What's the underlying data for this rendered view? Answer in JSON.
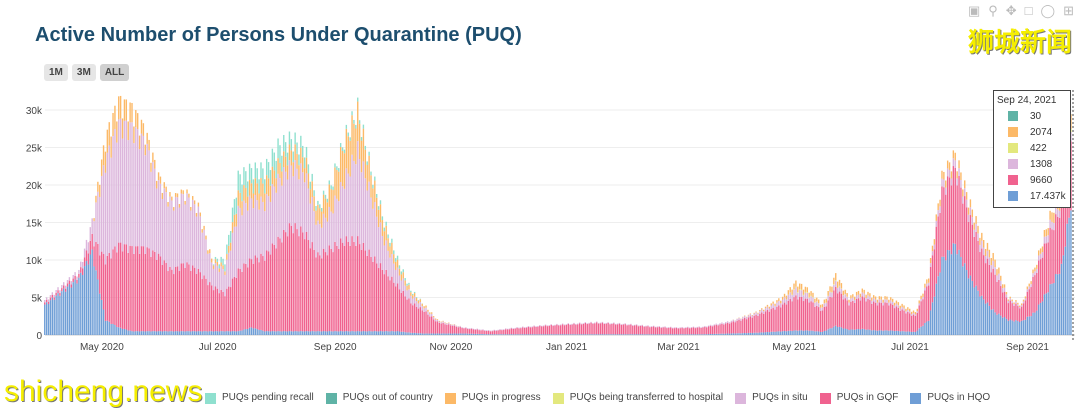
{
  "title": "Active Number of Persons Under Quarantine (PUQ)",
  "range_buttons": [
    "1M",
    "3M",
    "ALL"
  ],
  "watermark_top": "狮城新闻",
  "watermark_bottom": "shicheng.news",
  "toolbar_icons": [
    "camera-icon",
    "zoom-icon",
    "pan-icon",
    "box-select-icon",
    "lasso-icon",
    "plus-icon"
  ],
  "chart_data": {
    "type": "bar",
    "stacked": true,
    "title": "Active Number of Persons Under Quarantine (PUQ)",
    "xlabel": "",
    "ylabel": "",
    "ylim": [
      0,
      32000
    ],
    "yticks": [
      0,
      5000,
      10000,
      15000,
      20000,
      25000,
      30000
    ],
    "ytick_labels": [
      "0",
      "5k",
      "10k",
      "15k",
      "20k",
      "25k",
      "30k"
    ],
    "xtick_labels": [
      [
        "2020-05-01",
        "May 2020"
      ],
      [
        "2020-07-01",
        "Jul 2020"
      ],
      [
        "2020-09-01",
        "Sep 2020"
      ],
      [
        "2020-11-01",
        "Nov 2020"
      ],
      [
        "2021-01-01",
        "Jan 2021"
      ],
      [
        "2021-03-01",
        "Mar 2021"
      ],
      [
        "2021-05-01",
        "May 2021"
      ],
      [
        "2021-07-01",
        "Jul 2021"
      ],
      [
        "2021-09-01",
        "Sep 2021"
      ]
    ],
    "xrange": [
      "2020-04-01",
      "2021-09-26"
    ],
    "grid": true,
    "legend_position": "bottom",
    "series": [
      {
        "name": "PUQs in HQO",
        "color": "#6f9ed6"
      },
      {
        "name": "PUQs in GQF",
        "color": "#f0628f"
      },
      {
        "name": "PUQs in situ",
        "color": "#dcb6dc"
      },
      {
        "name": "PUQs being transferred to hospital",
        "color": "#e3e87e"
      },
      {
        "name": "PUQs in progress",
        "color": "#fcb967"
      },
      {
        "name": "PUQs out of country",
        "color": "#5fb3a6"
      },
      {
        "name": "PUQs pending recall",
        "color": "#8fe0cf"
      }
    ],
    "legend_order": [
      "PUQs pending recall",
      "PUQs out of country",
      "PUQs in progress",
      "PUQs being transferred to hospital",
      "PUQs in situ",
      "PUQs in GQF",
      "PUQs in HQO"
    ],
    "records_columns": [
      "date",
      "HQO",
      "GQF",
      "situ",
      "transfer",
      "progress",
      "out_of_country",
      "pending_recall"
    ],
    "records_unit": "thousands",
    "records": [
      [
        "2020-04-01",
        4,
        0.3,
        0.3,
        0,
        0,
        0,
        0
      ],
      [
        "2020-04-19",
        7.5,
        0.5,
        0.5,
        0,
        0,
        0,
        0
      ],
      [
        "2020-04-26",
        11,
        2,
        2,
        0,
        0,
        0,
        0
      ],
      [
        "2020-05-03",
        2,
        8,
        13,
        0,
        3,
        0,
        0
      ],
      [
        "2020-05-10",
        1,
        11,
        16,
        0,
        3,
        0,
        0
      ],
      [
        "2020-05-17",
        0.5,
        11,
        16,
        0,
        2.5,
        0,
        0
      ],
      [
        "2020-05-24",
        0.5,
        11,
        14,
        0,
        1.5,
        0,
        0
      ],
      [
        "2020-05-31",
        0.5,
        10,
        9.5,
        0,
        1,
        0,
        0
      ],
      [
        "2020-06-07",
        0.5,
        8,
        9,
        0,
        0.5,
        0,
        0
      ],
      [
        "2020-06-14",
        0.5,
        9,
        9,
        0,
        0.5,
        0,
        0
      ],
      [
        "2020-06-21",
        0.5,
        8,
        8,
        0,
        0.5,
        0,
        0
      ],
      [
        "2020-06-28",
        0.5,
        6,
        3,
        0,
        0.5,
        0,
        0
      ],
      [
        "2020-07-05",
        0.5,
        5,
        3,
        0,
        0.5,
        0,
        1
      ],
      [
        "2020-07-12",
        0.5,
        8,
        8,
        0,
        2,
        0,
        2.5
      ],
      [
        "2020-07-19",
        1,
        9,
        8,
        0,
        2,
        0,
        2
      ],
      [
        "2020-07-26",
        0.5,
        10,
        7,
        0,
        2.5,
        0,
        2
      ],
      [
        "2020-08-02",
        0.5,
        12,
        8,
        0,
        2,
        0,
        2.5
      ],
      [
        "2020-08-09",
        0.5,
        14,
        8,
        0,
        2,
        0,
        1.5
      ],
      [
        "2020-08-16",
        0.5,
        13,
        8,
        0,
        2,
        0,
        1.5
      ],
      [
        "2020-08-23",
        0.5,
        10,
        4,
        0,
        2,
        0,
        0.5
      ],
      [
        "2020-08-30",
        0.5,
        11,
        5,
        0,
        3,
        0,
        0.5
      ],
      [
        "2020-09-06",
        0.5,
        12,
        8,
        0,
        5,
        0,
        0.5
      ],
      [
        "2020-09-13",
        0.5,
        12,
        12,
        0,
        5,
        0,
        0.5
      ],
      [
        "2020-09-20",
        0.5,
        10,
        8,
        0,
        3,
        0,
        0.5
      ],
      [
        "2020-09-27",
        0.5,
        8,
        4,
        0,
        2,
        0,
        0.5
      ],
      [
        "2020-10-04",
        0.5,
        6,
        2,
        0,
        1,
        0,
        0.5
      ],
      [
        "2020-10-11",
        0.3,
        4,
        1,
        0,
        0.5,
        0,
        0.2
      ],
      [
        "2020-10-18",
        0.2,
        3,
        0.5,
        0,
        0.3,
        0,
        0
      ],
      [
        "2020-10-25",
        0.2,
        1.5,
        0.2,
        0,
        0.1,
        0,
        0
      ],
      [
        "2020-11-08",
        0.2,
        0.7,
        0.1,
        0,
        0,
        0,
        0
      ],
      [
        "2020-11-22",
        0.1,
        0.4,
        0.1,
        0,
        0,
        0,
        0
      ],
      [
        "2020-12-06",
        0.1,
        0.8,
        0.1,
        0,
        0,
        0,
        0
      ],
      [
        "2020-12-20",
        0.1,
        1.1,
        0.1,
        0,
        0,
        0,
        0
      ],
      [
        "2021-01-03",
        0.1,
        1.3,
        0.1,
        0,
        0,
        0,
        0
      ],
      [
        "2021-01-17",
        0.1,
        1.5,
        0.1,
        0,
        0,
        0,
        0
      ],
      [
        "2021-01-31",
        0.1,
        1.3,
        0.1,
        0,
        0,
        0,
        0
      ],
      [
        "2021-02-14",
        0.1,
        1,
        0.1,
        0,
        0,
        0,
        0
      ],
      [
        "2021-02-28",
        0.1,
        0.8,
        0.1,
        0,
        0,
        0,
        0
      ],
      [
        "2021-03-14",
        0.1,
        0.9,
        0.1,
        0,
        0,
        0,
        0
      ],
      [
        "2021-03-28",
        0.2,
        1.4,
        0.2,
        0,
        0,
        0,
        0
      ],
      [
        "2021-04-11",
        0.3,
        2.3,
        0.3,
        0,
        0.1,
        0,
        0
      ],
      [
        "2021-04-25",
        0.5,
        3.5,
        0.6,
        0,
        0.4,
        0,
        0
      ],
      [
        "2021-05-02",
        0.6,
        4.5,
        1,
        0.1,
        0.8,
        0,
        0
      ],
      [
        "2021-05-09",
        0.6,
        4,
        0.7,
        0.1,
        0.6,
        0,
        0
      ],
      [
        "2021-05-16",
        0.4,
        2.8,
        0.4,
        0,
        0.4,
        0,
        0
      ],
      [
        "2021-05-23",
        1.2,
        5,
        0.8,
        0.1,
        0.9,
        0,
        0
      ],
      [
        "2021-05-30",
        0.7,
        3.5,
        0.4,
        0,
        0.4,
        0,
        0
      ],
      [
        "2021-06-06",
        0.8,
        4.2,
        0.5,
        0,
        0.5,
        0,
        0
      ],
      [
        "2021-06-13",
        0.6,
        3.6,
        0.4,
        0,
        0.4,
        0,
        0
      ],
      [
        "2021-06-20",
        0.6,
        3.6,
        0.4,
        0,
        0.4,
        0,
        0
      ],
      [
        "2021-06-27",
        0.5,
        2.8,
        0.3,
        0,
        0.4,
        0,
        0
      ],
      [
        "2021-07-04",
        0.4,
        2.1,
        0.2,
        0,
        0.3,
        0,
        0
      ],
      [
        "2021-07-11",
        2,
        5,
        0.4,
        0,
        0.6,
        0,
        0
      ],
      [
        "2021-07-18",
        10,
        9,
        1,
        0,
        1,
        0,
        0
      ],
      [
        "2021-07-25",
        12,
        10,
        1,
        0,
        1,
        0,
        0
      ],
      [
        "2021-08-01",
        8,
        8,
        1,
        0,
        1,
        0,
        0
      ],
      [
        "2021-08-08",
        5,
        6,
        1,
        0,
        1,
        0,
        0
      ],
      [
        "2021-08-15",
        3,
        5,
        1,
        0,
        1,
        0,
        0
      ],
      [
        "2021-08-22",
        2,
        2.5,
        0.3,
        0,
        0.2,
        0,
        0
      ],
      [
        "2021-08-29",
        1.8,
        1.8,
        0.2,
        0,
        0.2,
        0,
        0
      ],
      [
        "2021-09-05",
        3,
        5,
        0.5,
        0,
        0.5,
        0,
        0
      ],
      [
        "2021-09-12",
        6,
        7,
        1,
        0,
        1,
        0,
        0
      ],
      [
        "2021-09-19",
        9,
        8,
        1,
        0,
        2,
        0,
        0
      ],
      [
        "2021-09-24",
        17.437,
        9.66,
        1.308,
        0.422,
        2.074,
        0.03,
        0
      ]
    ],
    "hover": {
      "date": "Sep 24, 2021",
      "rows": [
        {
          "color": "#5fb3a6",
          "value": "30"
        },
        {
          "color": "#fcb967",
          "value": "2074"
        },
        {
          "color": "#e3e87e",
          "value": "422"
        },
        {
          "color": "#dcb6dc",
          "value": "1308"
        },
        {
          "color": "#f0628f",
          "value": "9660"
        },
        {
          "color": "#6f9ed6",
          "value": "17.437k"
        }
      ]
    }
  }
}
